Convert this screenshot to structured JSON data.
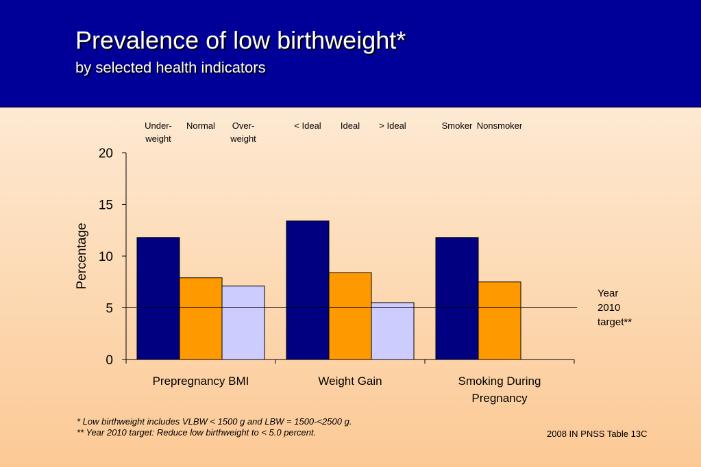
{
  "header": {
    "title": "Prevalence of low birthweight*",
    "subtitle": "by selected health indicators"
  },
  "chart_data": {
    "type": "bar",
    "categories": [
      "Prepregnancy BMI",
      "Weight Gain",
      "Smoking During Pregnancy"
    ],
    "category_lines": [
      [
        "Prepregnancy BMI"
      ],
      [
        "Weight Gain"
      ],
      [
        "Smoking During",
        "Pregnancy"
      ]
    ],
    "series": [
      {
        "values": [
          11.8,
          13.4,
          11.8
        ],
        "color": "#000080"
      },
      {
        "values": [
          7.9,
          8.4,
          7.5
        ],
        "color": "#ff9900"
      },
      {
        "values": [
          7.1,
          5.5,
          null
        ],
        "color": "#ccccff"
      }
    ],
    "bar_labels": [
      [
        [
          "Under-",
          "weight"
        ],
        [
          "Normal"
        ],
        [
          "Over-",
          "weight"
        ]
      ],
      [
        [
          "< Ideal"
        ],
        [
          "Ideal"
        ],
        [
          "> Ideal"
        ]
      ],
      [
        [
          "Smoker"
        ],
        [
          "Nonsmoker"
        ]
      ]
    ],
    "ylabel": "Percentage",
    "xlabel": "",
    "ylim": [
      0,
      20
    ],
    "yticks": [
      "0",
      "5",
      "10",
      "15",
      "20"
    ],
    "reference_line": {
      "value": 5,
      "label_lines": [
        "Year",
        "2010",
        "target**"
      ]
    },
    "grid": false,
    "legend": "none"
  },
  "footnotes": {
    "note1": "*    Low birthweight includes VLBW < 1500 g and LBW = 1500-<2500 g.",
    "note2": "**  Year 2010 target: Reduce low birthweight to < 5.0 percent."
  },
  "source": "2008 IN PNSS Table 13C"
}
